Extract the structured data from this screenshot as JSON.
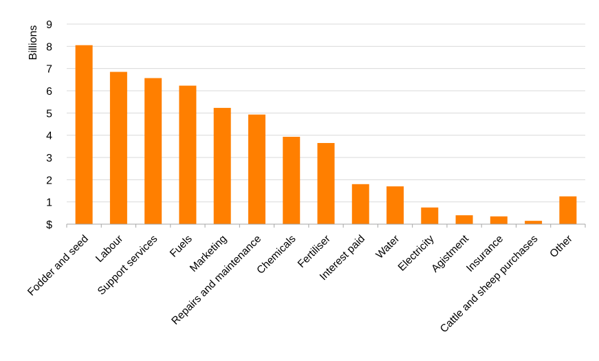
{
  "chart_data": {
    "type": "bar",
    "title": "",
    "xlabel": "",
    "ylabel": "Billions",
    "ylim": [
      0,
      9
    ],
    "yticks": [
      {
        "value": 0,
        "label": "$"
      },
      {
        "value": 1,
        "label": "1"
      },
      {
        "value": 2,
        "label": "2"
      },
      {
        "value": 3,
        "label": "3"
      },
      {
        "value": 4,
        "label": "4"
      },
      {
        "value": 5,
        "label": "5"
      },
      {
        "value": 6,
        "label": "6"
      },
      {
        "value": 7,
        "label": "7"
      },
      {
        "value": 8,
        "label": "8"
      },
      {
        "value": 9,
        "label": "9"
      }
    ],
    "grid": true,
    "legend": "none",
    "bar_color": "#FF7F00",
    "grid_color": "#D9D9D9",
    "categories": [
      "Fodder and seed",
      "Labour",
      "Support services",
      "Fuels",
      "Marketing",
      "Repairs and maintenance",
      "Chemicals",
      "Fertiliser",
      "Interest paid",
      "Water",
      "Electricity",
      "Agistment",
      "Insurance",
      "Cattle and sheep purchases",
      "Other"
    ],
    "values": [
      8.05,
      6.85,
      6.57,
      6.23,
      5.23,
      4.93,
      3.93,
      3.65,
      1.8,
      1.7,
      0.75,
      0.4,
      0.35,
      0.15,
      1.25
    ]
  }
}
